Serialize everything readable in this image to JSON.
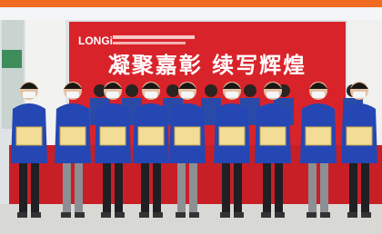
{
  "banner": {
    "logo": "LONGi",
    "slogan": "凝聚嘉彰  续写辉煌"
  }
}
